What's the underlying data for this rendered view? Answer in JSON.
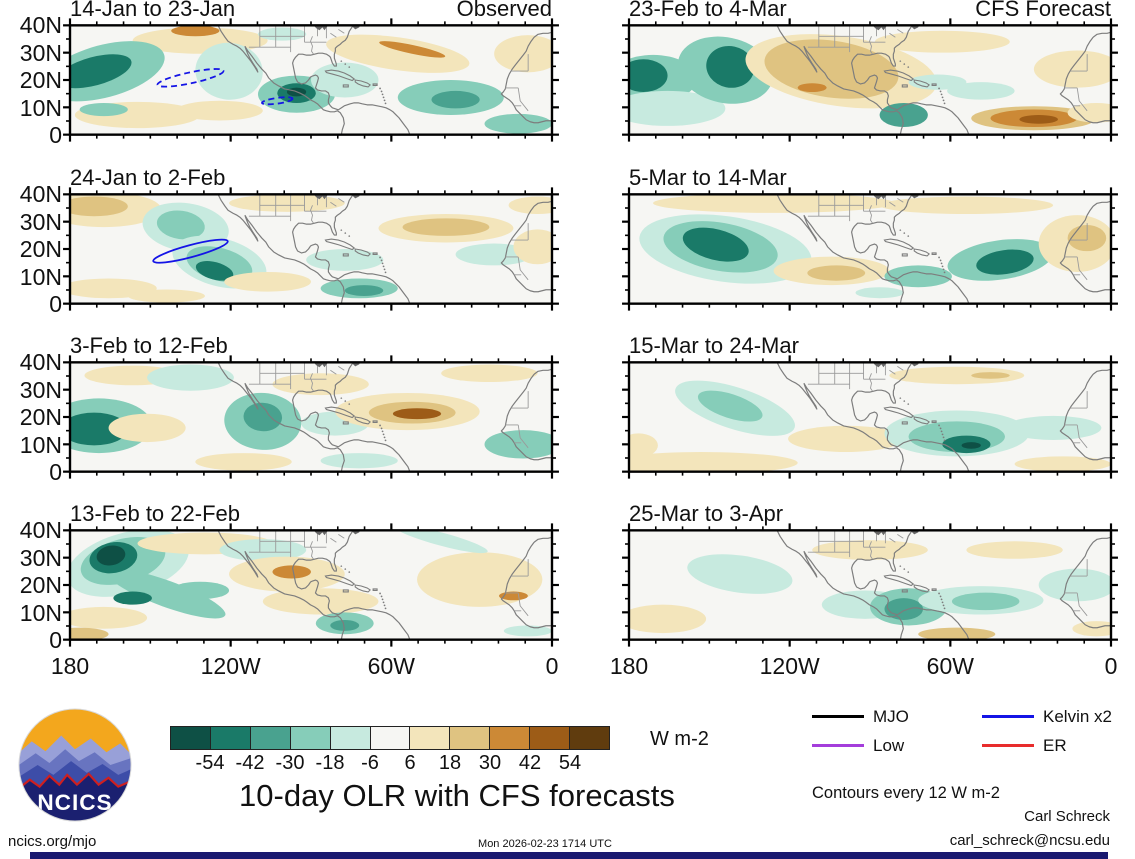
{
  "figure": {
    "column_headers": [
      "Observed",
      "CFS Forecast"
    ],
    "yticks": [
      "40N",
      "30N",
      "20N",
      "10N",
      "0"
    ],
    "xticks": [
      "180",
      "120W",
      "60W",
      "0"
    ]
  },
  "chart_data": {
    "type": "heatmap",
    "subtype": "olr-anomaly-contour-maps",
    "units": "W m-2",
    "lon_range_deg": [
      -180,
      0
    ],
    "lat_range_deg": [
      0,
      40
    ],
    "levels": [
      -54,
      -42,
      -30,
      -18,
      -6,
      6,
      18,
      30,
      42,
      54
    ],
    "palette": [
      "#0e5045",
      "#1a7a68",
      "#49a28f",
      "#86cdb9",
      "#c7eadf",
      "#f6f6f3",
      "#f3e5bb",
      "#dfc381",
      "#cc8936",
      "#9d5c17",
      "#603c0e"
    ],
    "panels": [
      {
        "title": "14-Jan to 23-Jan",
        "corner_label": "Observed",
        "features": [
          [
            27,
            14,
            14,
            12,
            0,
            1
          ],
          [
            26,
            5,
            5,
            5,
            0,
            3
          ],
          [
            7,
            42,
            13,
            24,
            -15,
            -2
          ],
          [
            5,
            42,
            8,
            13,
            -15,
            -4
          ],
          [
            33,
            42,
            7,
            26,
            5,
            -1
          ],
          [
            14,
            82,
            13,
            12,
            0,
            1
          ],
          [
            7,
            77,
            5,
            6,
            0,
            -2
          ],
          [
            31,
            78,
            9,
            9,
            0,
            1
          ],
          [
            47,
            63,
            8,
            17,
            0,
            -2
          ],
          [
            47,
            62,
            4,
            9,
            0,
            -4
          ],
          [
            47,
            61,
            2,
            4,
            0,
            -5
          ],
          [
            57,
            50,
            7,
            16,
            0,
            -1
          ],
          [
            68,
            26,
            15,
            15,
            8,
            1
          ],
          [
            71,
            22,
            7,
            4,
            12,
            3
          ],
          [
            79,
            66,
            11,
            16,
            0,
            -2
          ],
          [
            80,
            68,
            5,
            8,
            0,
            -3
          ],
          [
            95,
            26,
            7,
            17,
            0,
            1
          ],
          [
            93,
            90,
            7,
            9,
            0,
            -2
          ],
          [
            44,
            8,
            5,
            6,
            0,
            -1
          ]
        ],
        "wave_contours": [
          [
            25,
            48,
            7,
            5,
            -12,
            1
          ],
          [
            43,
            69,
            3.2,
            2.6,
            -8,
            1
          ]
        ]
      },
      {
        "title": "24-Jan to 2-Feb",
        "corner_label": "",
        "features": [
          [
            7,
            14,
            12,
            16,
            0,
            1
          ],
          [
            5,
            11,
            7,
            9,
            0,
            2
          ],
          [
            24,
            30,
            9,
            22,
            8,
            -1
          ],
          [
            23,
            28,
            5,
            13,
            8,
            -2
          ],
          [
            31,
            62,
            10,
            22,
            15,
            -1
          ],
          [
            31,
            64,
            7,
            15,
            15,
            -2
          ],
          [
            30,
            70,
            4,
            8,
            15,
            -4
          ],
          [
            8,
            86,
            10,
            9,
            0,
            1
          ],
          [
            20,
            93,
            8,
            6,
            0,
            1
          ],
          [
            41,
            80,
            9,
            9,
            0,
            1
          ],
          [
            45,
            8,
            12,
            8,
            0,
            1
          ],
          [
            57,
            60,
            8,
            10,
            0,
            -1
          ],
          [
            60,
            86,
            8,
            9,
            0,
            -2
          ],
          [
            61,
            88,
            4,
            5,
            0,
            -3
          ],
          [
            78,
            31,
            14,
            13,
            0,
            1
          ],
          [
            78,
            30,
            9,
            8,
            0,
            2
          ],
          [
            88,
            55,
            8,
            10,
            0,
            -1
          ],
          [
            97,
            48,
            5,
            16,
            0,
            1
          ],
          [
            97,
            10,
            6,
            8,
            0,
            1
          ]
        ],
        "wave_contours": [
          [
            25,
            52,
            8,
            5.5,
            -15,
            0
          ]
        ]
      },
      {
        "title": "3-Feb to 12-Feb",
        "corner_label": "",
        "features": [
          [
            6,
            58,
            11,
            25,
            0,
            -2
          ],
          [
            5,
            61,
            7,
            15,
            0,
            -4
          ],
          [
            16,
            60,
            8,
            13,
            0,
            1
          ],
          [
            13,
            12,
            10,
            9,
            0,
            1
          ],
          [
            25,
            14,
            9,
            12,
            0,
            -1
          ],
          [
            40,
            54,
            8,
            26,
            4,
            -2
          ],
          [
            40,
            50,
            4,
            13,
            4,
            -3
          ],
          [
            36,
            91,
            10,
            8,
            0,
            1
          ],
          [
            52,
            20,
            10,
            10,
            0,
            1
          ],
          [
            55,
            56,
            7,
            11,
            0,
            -1
          ],
          [
            70,
            45,
            15,
            17,
            0,
            1
          ],
          [
            71,
            46,
            9,
            10,
            0,
            2
          ],
          [
            72,
            47,
            5,
            5,
            0,
            4
          ],
          [
            87,
            10,
            10,
            8,
            0,
            1
          ],
          [
            94,
            75,
            8,
            13,
            0,
            -2
          ],
          [
            60,
            90,
            8,
            7,
            0,
            -1
          ]
        ],
        "wave_contours": []
      },
      {
        "title": "13-Feb to 22-Feb",
        "corner_label": "",
        "features": [
          [
            12,
            30,
            13,
            28,
            -15,
            -1
          ],
          [
            11,
            28,
            9,
            20,
            -15,
            -2
          ],
          [
            20,
            58,
            13,
            12,
            20,
            -2
          ],
          [
            27,
            55,
            6,
            8,
            0,
            -2
          ],
          [
            13,
            62,
            4,
            6,
            0,
            -4
          ],
          [
            9,
            25,
            5,
            14,
            -10,
            -4
          ],
          [
            8.5,
            23,
            3,
            9,
            -10,
            -5
          ],
          [
            7,
            80,
            9,
            10,
            0,
            1
          ],
          [
            2,
            95,
            6,
            6,
            0,
            2
          ],
          [
            28,
            12,
            14,
            10,
            0,
            1
          ],
          [
            40,
            18,
            9,
            10,
            0,
            -1
          ],
          [
            45,
            40,
            12,
            16,
            0,
            1
          ],
          [
            46,
            38,
            4,
            6,
            0,
            3
          ],
          [
            52,
            65,
            12,
            12,
            0,
            1
          ],
          [
            57,
            85,
            6,
            10,
            0,
            -2
          ],
          [
            57,
            87,
            3,
            5,
            0,
            -3
          ],
          [
            85,
            45,
            13,
            25,
            0,
            1
          ],
          [
            92,
            60,
            3,
            4,
            0,
            3
          ],
          [
            77,
            8,
            10,
            6,
            15,
            -1
          ],
          [
            95,
            92,
            5,
            5,
            0,
            -1
          ]
        ],
        "wave_contours": []
      },
      {
        "title": "23-Feb to 4-Mar",
        "corner_label": "CFS Forecast",
        "features": [
          [
            5,
            49,
            9,
            22,
            0,
            -2
          ],
          [
            3,
            46,
            5,
            15,
            0,
            -4
          ],
          [
            8,
            76,
            12,
            16,
            0,
            -1
          ],
          [
            20,
            41,
            10,
            30,
            12,
            -2
          ],
          [
            21,
            38,
            5,
            19,
            12,
            -4
          ],
          [
            44,
            42,
            20,
            32,
            8,
            1
          ],
          [
            42,
            40,
            14,
            26,
            8,
            2
          ],
          [
            38,
            57,
            3,
            4,
            0,
            3
          ],
          [
            65,
            15,
            14,
            10,
            0,
            1
          ],
          [
            64,
            52,
            6,
            7,
            0,
            -1
          ],
          [
            57,
            82,
            5,
            11,
            0,
            -3
          ],
          [
            73,
            60,
            7,
            8,
            0,
            -1
          ],
          [
            84,
            85,
            13,
            11,
            0,
            2
          ],
          [
            84,
            85,
            9,
            8,
            0,
            3
          ],
          [
            85,
            86,
            4,
            4,
            0,
            4
          ],
          [
            93,
            40,
            9,
            17,
            0,
            1
          ],
          [
            97,
            80,
            6,
            9,
            0,
            1
          ]
        ],
        "wave_contours": []
      },
      {
        "title": "5-Mar to 14-Mar",
        "corner_label": "",
        "features": [
          [
            30,
            8,
            25,
            9,
            0,
            1
          ],
          [
            70,
            10,
            18,
            8,
            0,
            1
          ],
          [
            20,
            50,
            18,
            30,
            8,
            -1
          ],
          [
            19,
            48,
            12,
            22,
            10,
            -2
          ],
          [
            18,
            46,
            7,
            14,
            14,
            -4
          ],
          [
            42,
            70,
            12,
            13,
            0,
            1
          ],
          [
            43,
            72,
            6,
            7,
            0,
            2
          ],
          [
            60,
            75,
            7,
            10,
            0,
            -2
          ],
          [
            77,
            60,
            11,
            18,
            -8,
            -2
          ],
          [
            78,
            62,
            6,
            11,
            -8,
            -4
          ],
          [
            93,
            45,
            8,
            26,
            0,
            1
          ],
          [
            95,
            40,
            4,
            12,
            0,
            2
          ],
          [
            52,
            90,
            5,
            5,
            0,
            -1
          ]
        ],
        "wave_contours": []
      },
      {
        "title": "15-Mar to 24-Mar",
        "corner_label": "",
        "features": [
          [
            22,
            42,
            13,
            19,
            18,
            -1
          ],
          [
            21,
            40,
            7,
            11,
            18,
            -2
          ],
          [
            15,
            92,
            20,
            10,
            0,
            1
          ],
          [
            45,
            70,
            12,
            12,
            0,
            1
          ],
          [
            68,
            12,
            14,
            8,
            0,
            1
          ],
          [
            75,
            12,
            4,
            3,
            0,
            2
          ],
          [
            68,
            65,
            15,
            21,
            0,
            -1
          ],
          [
            68,
            68,
            10,
            14,
            0,
            -2
          ],
          [
            70,
            75,
            5,
            8,
            0,
            -4
          ],
          [
            71,
            76,
            2,
            3,
            0,
            -5
          ],
          [
            88,
            60,
            10,
            11,
            0,
            -1
          ],
          [
            90,
            93,
            10,
            7,
            0,
            1
          ],
          [
            2,
            76,
            4,
            11,
            0,
            1
          ]
        ],
        "wave_contours": []
      },
      {
        "title": "25-Mar to 3-Apr",
        "corner_label": "",
        "features": [
          [
            23,
            40,
            11,
            17,
            8,
            -1
          ],
          [
            7,
            81,
            9,
            13,
            0,
            1
          ],
          [
            50,
            18,
            12,
            9,
            0,
            1
          ],
          [
            49,
            68,
            9,
            13,
            0,
            -1
          ],
          [
            58,
            70,
            8,
            17,
            0,
            -2
          ],
          [
            57,
            72,
            4,
            10,
            0,
            -3
          ],
          [
            73,
            64,
            13,
            13,
            0,
            -1
          ],
          [
            74,
            65,
            7,
            8,
            0,
            -2
          ],
          [
            68,
            95,
            8,
            6,
            0,
            2
          ],
          [
            80,
            18,
            10,
            8,
            0,
            1
          ],
          [
            93,
            50,
            8,
            15,
            0,
            -1
          ],
          [
            97,
            90,
            5,
            7,
            0,
            1
          ]
        ],
        "wave_contours": []
      }
    ]
  },
  "colorbar": {
    "tick_labels": [
      "-54",
      "-42",
      "-30",
      "-18",
      "-6",
      "6",
      "18",
      "30",
      "42",
      "54"
    ],
    "units_label": "W m-2"
  },
  "legend": {
    "items": [
      {
        "label": "MJO",
        "color": "#000000"
      },
      {
        "label": "Kelvin x2",
        "color": "#1414e6"
      },
      {
        "label": "Low",
        "color": "#a43ddb"
      },
      {
        "label": "ER",
        "color": "#e82c2c"
      }
    ],
    "note": "Contours every 12 W m-2"
  },
  "footer": {
    "title": "10-day OLR with CFS forecasts",
    "timestamp": "Mon 2026-02-23 1714 UTC",
    "credit_name": "Carl Schreck",
    "credit_email": "carl_schreck@ncsu.edu",
    "site_link": "ncics.org/mjo",
    "logo_text": "NCICS"
  }
}
